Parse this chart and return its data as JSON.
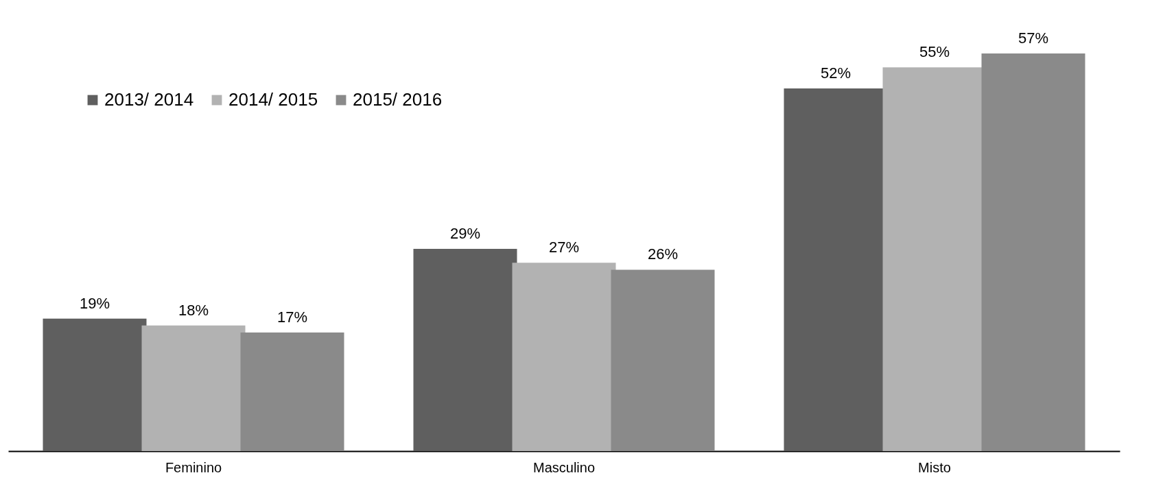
{
  "chart_data": {
    "type": "bar",
    "categories": [
      "Feminino",
      "Masculino",
      "Misto"
    ],
    "series": [
      {
        "name": "2013/ 2014",
        "color": "#5f5f5f",
        "values": [
          19,
          29,
          52
        ],
        "value_labels": [
          "19%",
          "29%",
          "52%"
        ]
      },
      {
        "name": "2014/ 2015",
        "color": "#b2b2b2",
        "values": [
          18,
          27,
          55
        ],
        "value_labels": [
          "18%",
          "27%",
          "55%"
        ]
      },
      {
        "name": "2015/ 2016",
        "color": "#8a8a8a",
        "values": [
          17,
          26,
          57
        ],
        "value_labels": [
          "17%",
          "26%",
          "57%"
        ]
      }
    ],
    "legend": "top left",
    "grid": false
  }
}
